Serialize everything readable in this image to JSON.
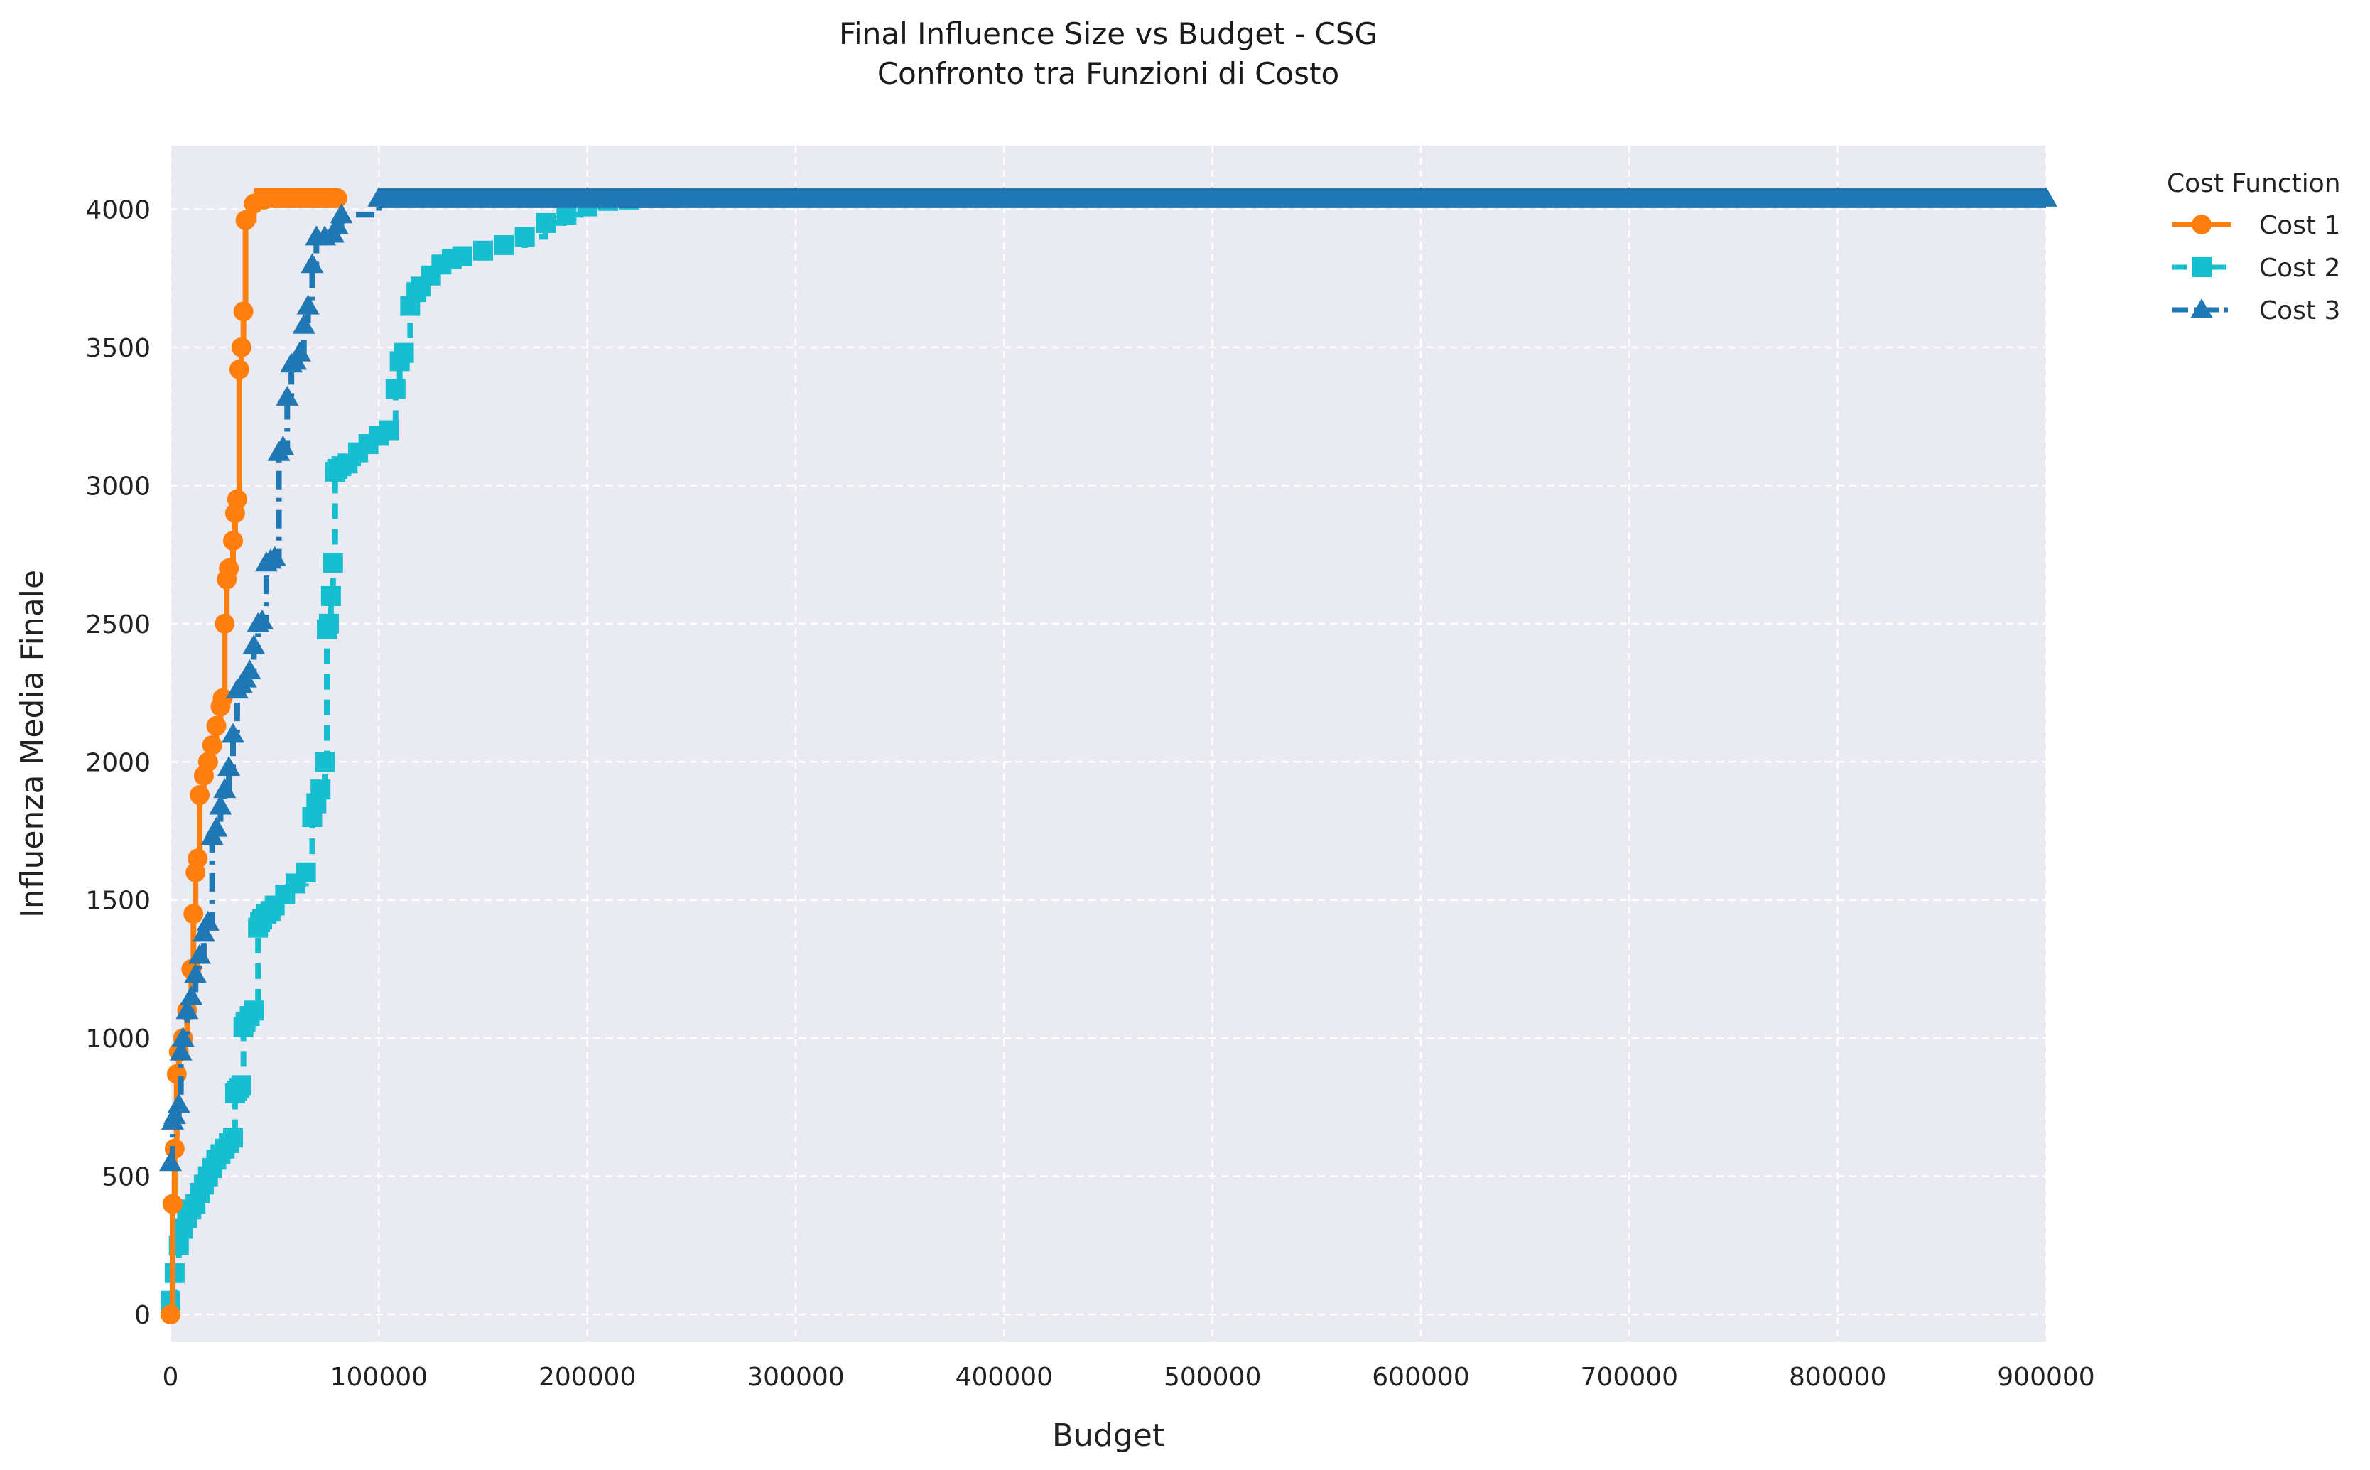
{
  "chart_data": {
    "type": "line",
    "title": "Final Influence Size vs Budget - CSG",
    "subtitle": "Confronto tra Funzioni di Costo",
    "xlabel": "Budget",
    "ylabel": "Influenza Media Finale",
    "xlim": [
      0,
      900000
    ],
    "ylim": [
      -100,
      4230
    ],
    "xticks": [
      0,
      100000,
      200000,
      300000,
      400000,
      500000,
      600000,
      700000,
      800000,
      900000
    ],
    "yticks": [
      0,
      500,
      1000,
      1500,
      2000,
      2500,
      3000,
      3500,
      4000
    ],
    "grid": true,
    "legend": {
      "title": "Cost Function",
      "placement": "outside-top-right"
    },
    "colors": {
      "background": "#eaeaf2",
      "grid": "#ffffff"
    },
    "series": [
      {
        "name": "Cost 1",
        "color": "#ff7f0e",
        "marker": "circle",
        "linestyle": "solid",
        "x": [
          0,
          1000,
          2000,
          3000,
          4000,
          6000,
          8000,
          10000,
          11000,
          12000,
          13000,
          14000,
          16000,
          18000,
          20000,
          22000,
          24000,
          25000,
          26000,
          27000,
          28000,
          30000,
          31000,
          32000,
          33000,
          34000,
          35000,
          36000,
          40000,
          45000,
          50000,
          60000,
          70000,
          80000
        ],
        "y": [
          0,
          400,
          600,
          870,
          950,
          1000,
          1100,
          1250,
          1450,
          1600,
          1650,
          1880,
          1950,
          2000,
          2060,
          2130,
          2200,
          2230,
          2500,
          2660,
          2700,
          2800,
          2900,
          2950,
          3420,
          3500,
          3630,
          3960,
          4020,
          4035,
          4040,
          4040,
          4040,
          4040
        ]
      },
      {
        "name": "Cost 2",
        "color": "#17becf",
        "marker": "square",
        "linestyle": "dashed",
        "x": [
          0,
          2000,
          4000,
          6000,
          8000,
          10000,
          12000,
          14000,
          16000,
          18000,
          20000,
          22000,
          24000,
          26000,
          28000,
          30000,
          31000,
          32000,
          33000,
          34000,
          35000,
          36000,
          38000,
          40000,
          42000,
          43000,
          44000,
          46000,
          48000,
          50000,
          55000,
          60000,
          65000,
          68000,
          70000,
          72000,
          74000,
          75000,
          76000,
          77000,
          78000,
          79000,
          80000,
          82000,
          85000,
          90000,
          95000,
          100000,
          105000,
          108000,
          110000,
          112000,
          115000,
          118000,
          120000,
          125000,
          130000,
          135000,
          140000,
          150000,
          160000,
          170000,
          180000,
          190000,
          200000,
          210000,
          220000,
          230000,
          240000
        ],
        "y": [
          50,
          150,
          250,
          310,
          350,
          380,
          400,
          440,
          470,
          500,
          530,
          560,
          580,
          600,
          620,
          640,
          800,
          810,
          820,
          830,
          1040,
          1060,
          1080,
          1100,
          1400,
          1420,
          1430,
          1450,
          1460,
          1480,
          1520,
          1560,
          1600,
          1800,
          1850,
          1900,
          2000,
          2480,
          2500,
          2600,
          2720,
          3050,
          3060,
          3070,
          3080,
          3120,
          3150,
          3180,
          3200,
          3350,
          3450,
          3480,
          3650,
          3700,
          3720,
          3760,
          3800,
          3820,
          3830,
          3850,
          3870,
          3900,
          3950,
          3980,
          4010,
          4030,
          4035,
          4040,
          4040
        ]
      },
      {
        "name": "Cost 3",
        "color": "#1f77b4",
        "marker": "triangle",
        "linestyle": "dashdot",
        "x": [
          0,
          1000,
          2000,
          4000,
          5000,
          6000,
          8000,
          10000,
          12000,
          14000,
          16000,
          18000,
          20000,
          22000,
          24000,
          26000,
          28000,
          30000,
          32000,
          34000,
          36000,
          38000,
          40000,
          42000,
          44000,
          46000,
          48000,
          50000,
          52000,
          54000,
          56000,
          58000,
          60000,
          62000,
          64000,
          66000,
          68000,
          70000,
          74000,
          78000,
          80000,
          82000,
          100000,
          200000,
          300000,
          400000,
          500000,
          600000,
          700000,
          800000,
          900000
        ],
        "y": [
          550,
          700,
          720,
          760,
          950,
          1000,
          1100,
          1150,
          1230,
          1300,
          1380,
          1420,
          1730,
          1760,
          1840,
          1900,
          1980,
          2100,
          2260,
          2280,
          2300,
          2330,
          2420,
          2500,
          2510,
          2720,
          2730,
          2740,
          3120,
          3140,
          3320,
          3440,
          3450,
          3480,
          3580,
          3650,
          3800,
          3900,
          3900,
          3910,
          3940,
          3980,
          4040,
          4040,
          4040,
          4040,
          4040,
          4040,
          4040,
          4040,
          4040
        ]
      }
    ]
  }
}
